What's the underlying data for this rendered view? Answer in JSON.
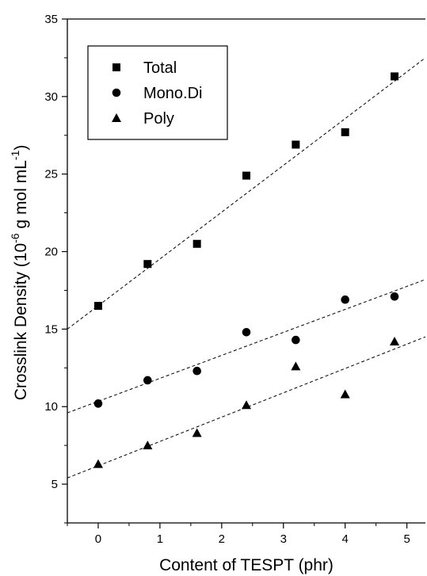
{
  "chart_data": {
    "type": "scatter",
    "xlabel": "Content of TESPT (phr)",
    "ylabel": {
      "prefix": "Crosslink Density (10",
      "exp1": "-6",
      "middle": " g mol mL",
      "exp2": "-1",
      "suffix": ")"
    },
    "xlim": [
      -0.5,
      5.3
    ],
    "ylim": [
      2.5,
      35
    ],
    "xticks": [
      0,
      1,
      2,
      3,
      4,
      5
    ],
    "yticks": [
      5,
      10,
      15,
      20,
      25,
      30,
      35
    ],
    "grid": false,
    "legend_position": "top-left",
    "series": [
      {
        "name": "Total",
        "marker": "square",
        "x": [
          0,
          0.8,
          1.6,
          2.4,
          3.2,
          4.0,
          4.8
        ],
        "y": [
          16.5,
          19.2,
          20.5,
          24.9,
          26.9,
          27.7,
          31.3
        ],
        "trend": [
          15.0,
          32.5
        ]
      },
      {
        "name": "Mono.Di",
        "marker": "circle",
        "x": [
          0,
          0.8,
          1.6,
          2.4,
          3.2,
          4.0,
          4.8
        ],
        "y": [
          10.2,
          11.7,
          12.3,
          14.8,
          14.3,
          16.9,
          17.1
        ],
        "trend": [
          9.6,
          18.2
        ]
      },
      {
        "name": "Poly",
        "marker": "triangle",
        "x": [
          0,
          0.8,
          1.6,
          2.4,
          3.2,
          4.0,
          4.8
        ],
        "y": [
          6.3,
          7.5,
          8.3,
          10.1,
          12.6,
          10.8,
          14.2
        ],
        "trend": [
          5.4,
          14.5
        ]
      }
    ]
  }
}
